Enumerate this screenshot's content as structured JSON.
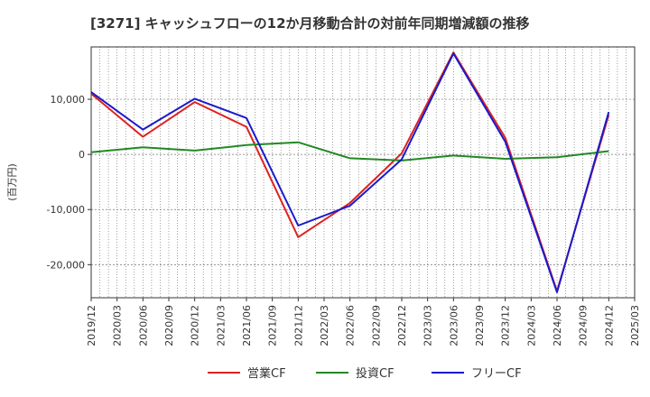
{
  "chart_data": {
    "type": "line",
    "title": "[3271]  キャッシュフローの12か月移動合計の対前年同期増減額の推移",
    "ylabel": "(百万円)",
    "xlabel": "",
    "ylim": [
      -26000,
      19500
    ],
    "yticks": [
      10000,
      0,
      -10000,
      -20000
    ],
    "ytick_labels": [
      "10,000",
      "0",
      "-10,000",
      "-20,000"
    ],
    "categories": [
      "2019/12",
      "2020/03",
      "2020/06",
      "2020/09",
      "2020/12",
      "2021/03",
      "2021/06",
      "2021/09",
      "2021/12",
      "2022/03",
      "2022/06",
      "2022/09",
      "2022/12",
      "2023/03",
      "2023/06",
      "2023/09",
      "2023/12",
      "2024/03",
      "2024/06",
      "2024/09",
      "2024/12",
      "2025/03"
    ],
    "grid": true,
    "legend_position": "bottom",
    "series": [
      {
        "name": "営業CF",
        "color": "#dd2222",
        "points": [
          [
            "2019/12",
            11000
          ],
          [
            "2020/06",
            3200
          ],
          [
            "2020/12",
            9500
          ],
          [
            "2021/06",
            5000
          ],
          [
            "2021/12",
            -15000
          ],
          [
            "2022/06",
            -8800
          ],
          [
            "2022/12",
            200
          ],
          [
            "2023/06",
            18500
          ],
          [
            "2023/12",
            3000
          ],
          [
            "2024/06",
            -24800
          ],
          [
            "2024/12",
            7200
          ]
        ]
      },
      {
        "name": "投資CF",
        "color": "#228822",
        "points": [
          [
            "2019/12",
            400
          ],
          [
            "2020/06",
            1300
          ],
          [
            "2020/12",
            700
          ],
          [
            "2021/06",
            1700
          ],
          [
            "2021/12",
            2200
          ],
          [
            "2022/06",
            -700
          ],
          [
            "2022/12",
            -1100
          ],
          [
            "2023/06",
            -200
          ],
          [
            "2023/12",
            -800
          ],
          [
            "2024/06",
            -500
          ],
          [
            "2024/12",
            600
          ]
        ]
      },
      {
        "name": "フリーCF",
        "color": "#1a1acc",
        "points": [
          [
            "2019/12",
            11300
          ],
          [
            "2020/06",
            4500
          ],
          [
            "2020/12",
            10100
          ],
          [
            "2021/06",
            6600
          ],
          [
            "2021/12",
            -12900
          ],
          [
            "2022/06",
            -9300
          ],
          [
            "2022/12",
            -900
          ],
          [
            "2023/06",
            18300
          ],
          [
            "2023/12",
            2300
          ],
          [
            "2024/06",
            -25000
          ],
          [
            "2024/12",
            7700
          ]
        ]
      }
    ]
  }
}
